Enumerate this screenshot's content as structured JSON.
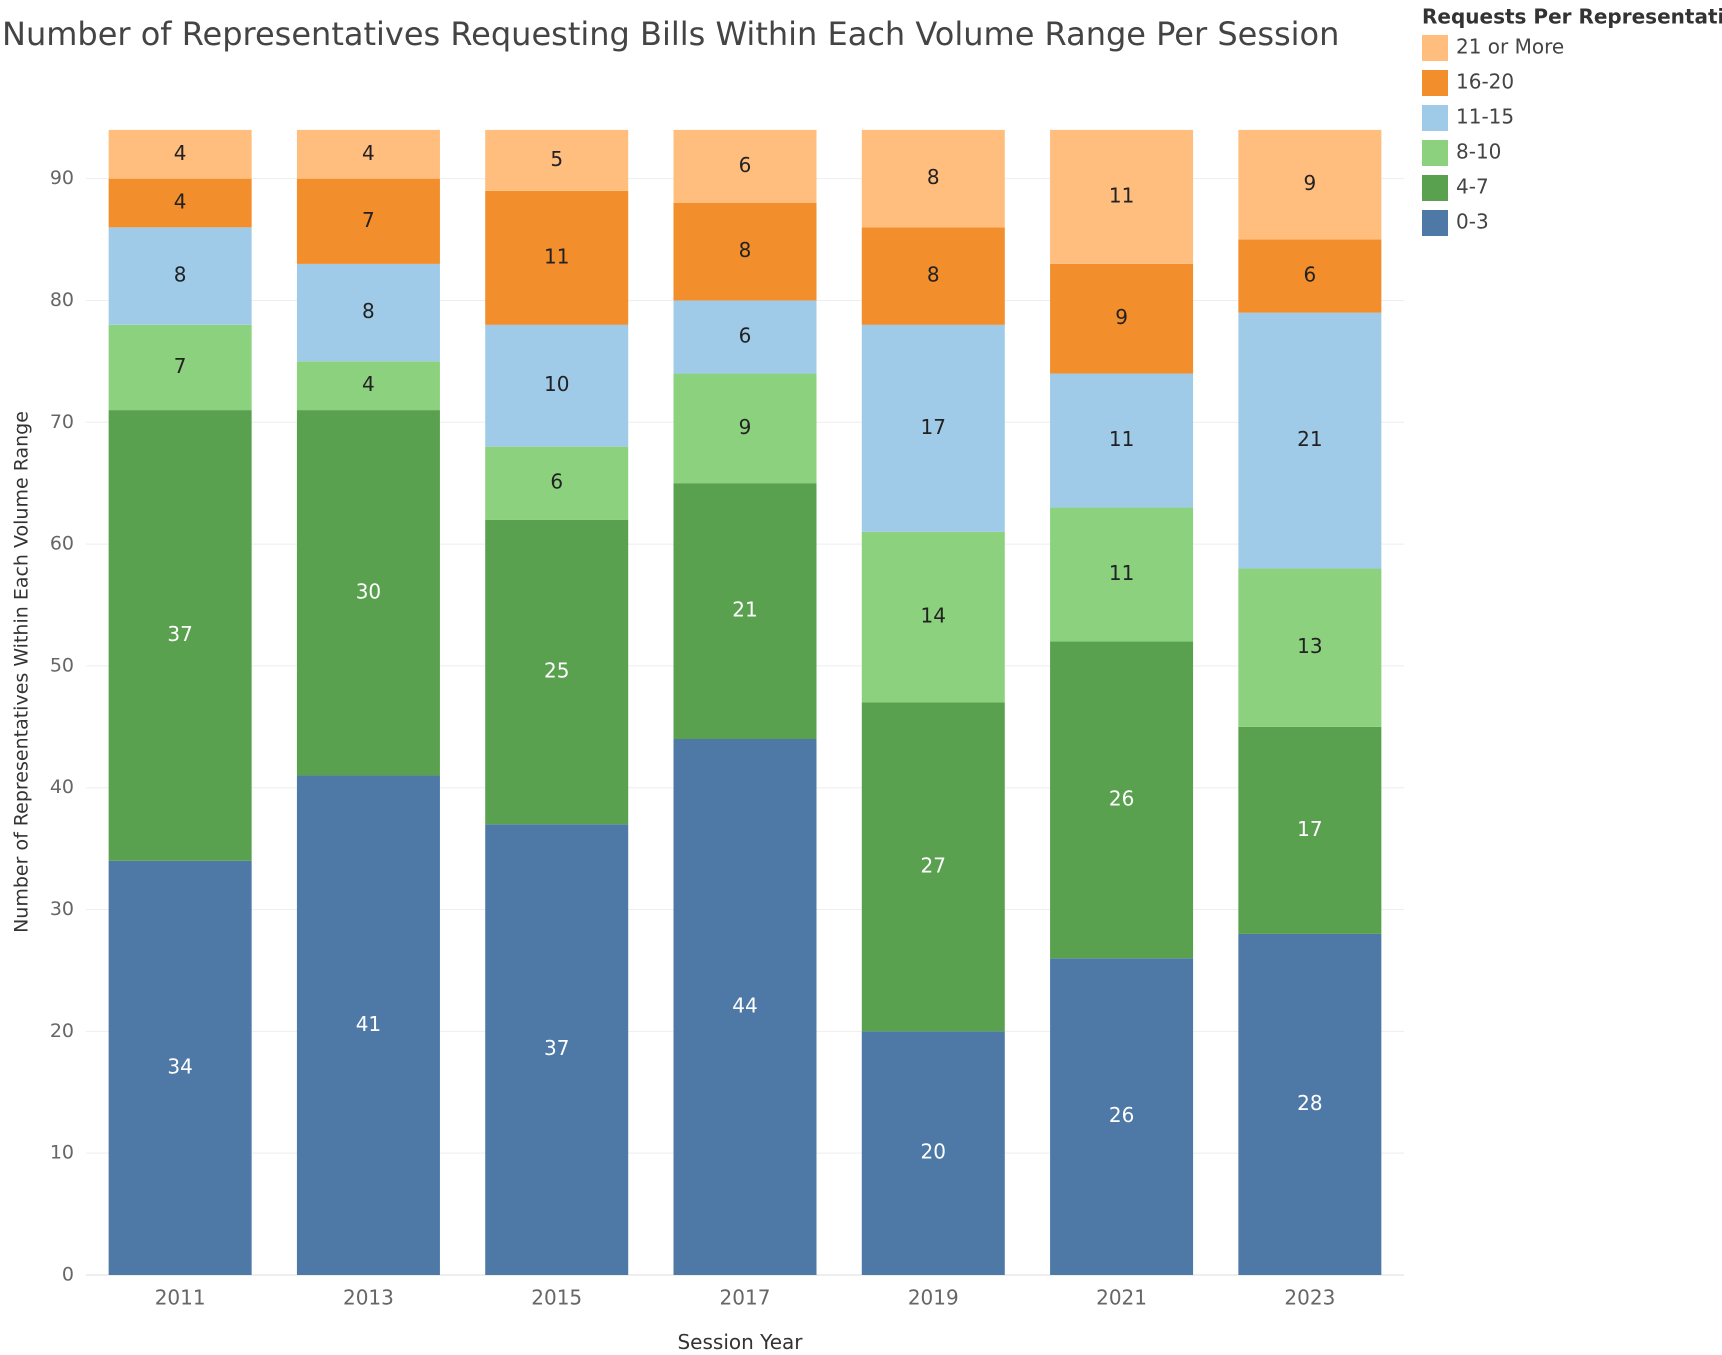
{
  "chart_data": {
    "type": "stacked_bar",
    "title": "Number of Representatives Requesting Bills Within Each Volume Range Per Session",
    "x_label": "Session Year",
    "y_label": "Number of Representatives Within Each Volume Range",
    "legend_title": "Requests Per Representative",
    "legend_position": "right",
    "categories": [
      "2011",
      "2013",
      "2015",
      "2017",
      "2019",
      "2021",
      "2023"
    ],
    "series": [
      {
        "name": "0-3",
        "color": "#4e79a7",
        "values": [
          34,
          41,
          37,
          44,
          20,
          26,
          28
        ]
      },
      {
        "name": "4-7",
        "color": "#59a14f",
        "values": [
          37,
          30,
          25,
          21,
          27,
          26,
          17
        ]
      },
      {
        "name": "8-10",
        "color": "#8cd17d",
        "values": [
          7,
          4,
          6,
          9,
          14,
          11,
          13
        ]
      },
      {
        "name": "11-15",
        "color": "#a0cbe8",
        "values": [
          8,
          8,
          10,
          6,
          17,
          11,
          21
        ]
      },
      {
        "name": "16-20",
        "color": "#f28e2b",
        "values": [
          4,
          7,
          11,
          8,
          8,
          9,
          6
        ]
      },
      {
        "name": "21 or More",
        "color": "#ffbe7d",
        "values": [
          4,
          4,
          5,
          6,
          8,
          11,
          9
        ]
      }
    ],
    "ylim": [
      0,
      99
    ],
    "yticks": [
      0,
      10,
      20,
      30,
      40,
      50,
      60,
      70,
      80,
      90
    ],
    "grid": true
  }
}
